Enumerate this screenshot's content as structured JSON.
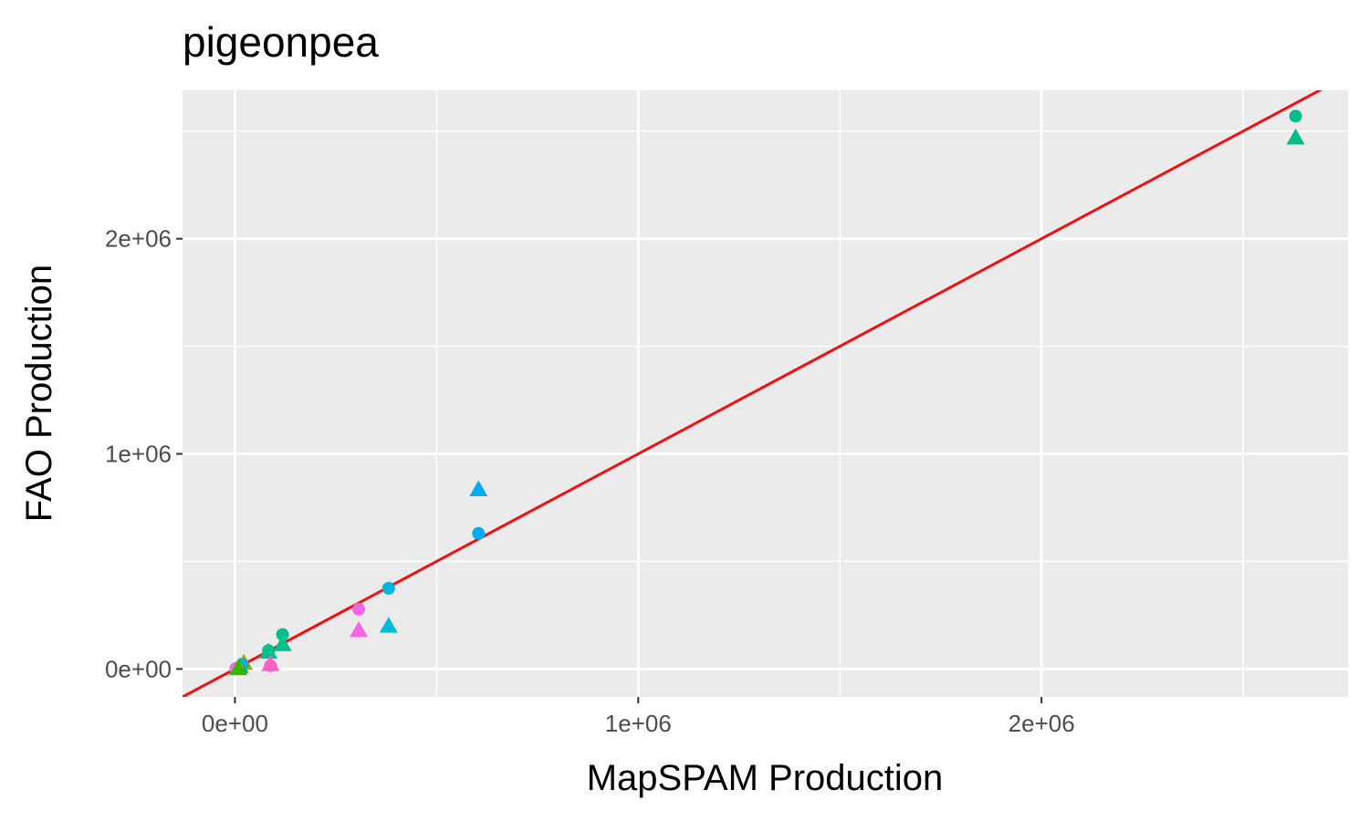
{
  "chart_data": {
    "type": "scatter",
    "title": "pigeonpea",
    "xlabel": "MapSPAM Production",
    "ylabel": "FAO Production",
    "xlim": [
      -130000,
      2760000
    ],
    "ylim": [
      -130000,
      2690000
    ],
    "x_ticks": [
      0,
      1000000,
      2000000
    ],
    "x_tick_labels": [
      "0e+00",
      "1e+06",
      "2e+06"
    ],
    "y_ticks": [
      0,
      1000000,
      2000000
    ],
    "y_tick_labels": [
      "0e+00",
      "1e+06",
      "2e+06"
    ],
    "x_minor": [
      500000,
      1500000,
      2500000
    ],
    "y_minor": [
      500000,
      1500000,
      2500000
    ],
    "grid": true,
    "legend": "none",
    "reference_line": {
      "slope": 1,
      "intercept": 0,
      "color": "#ee1111"
    },
    "panel_color": "#ebebeb",
    "points": [
      {
        "x": 2630000,
        "y": 2570000,
        "shape": "circle",
        "color": "#00be8a"
      },
      {
        "x": 2630000,
        "y": 2470000,
        "shape": "triangle",
        "color": "#00be8a"
      },
      {
        "x": 604000,
        "y": 630000,
        "shape": "circle",
        "color": "#00aeef"
      },
      {
        "x": 604000,
        "y": 835000,
        "shape": "triangle",
        "color": "#00aeef"
      },
      {
        "x": 381000,
        "y": 375000,
        "shape": "circle",
        "color": "#00b5d8"
      },
      {
        "x": 381000,
        "y": 200000,
        "shape": "triangle",
        "color": "#00bcd8"
      },
      {
        "x": 307000,
        "y": 278000,
        "shape": "circle",
        "color": "#f564e3"
      },
      {
        "x": 307000,
        "y": 180000,
        "shape": "triangle",
        "color": "#f564e3"
      },
      {
        "x": 118000,
        "y": 160000,
        "shape": "circle",
        "color": "#00c08b"
      },
      {
        "x": 118000,
        "y": 115000,
        "shape": "triangle",
        "color": "#00c08b"
      },
      {
        "x": 83000,
        "y": 85000,
        "shape": "circle",
        "color": "#00c08b"
      },
      {
        "x": 83000,
        "y": 80000,
        "shape": "triangle",
        "color": "#00c08b"
      },
      {
        "x": 88000,
        "y": 15000,
        "shape": "circle",
        "color": "#ff61c3"
      },
      {
        "x": 88000,
        "y": 22000,
        "shape": "triangle",
        "color": "#ff61c3"
      },
      {
        "x": 22000,
        "y": 28000,
        "shape": "triangle",
        "color": "#a3a500"
      },
      {
        "x": 18000,
        "y": 20000,
        "shape": "circle",
        "color": "#00b0f6"
      },
      {
        "x": 12000,
        "y": 12000,
        "shape": "triangle",
        "color": "#00bf7d"
      },
      {
        "x": 5000,
        "y": 5000,
        "shape": "circle",
        "color": "#f8766d"
      },
      {
        "x": 2000,
        "y": 2000,
        "shape": "circle",
        "color": "#e76bf3"
      },
      {
        "x": 8000,
        "y": 3000,
        "shape": "triangle",
        "color": "#39b600"
      }
    ]
  }
}
